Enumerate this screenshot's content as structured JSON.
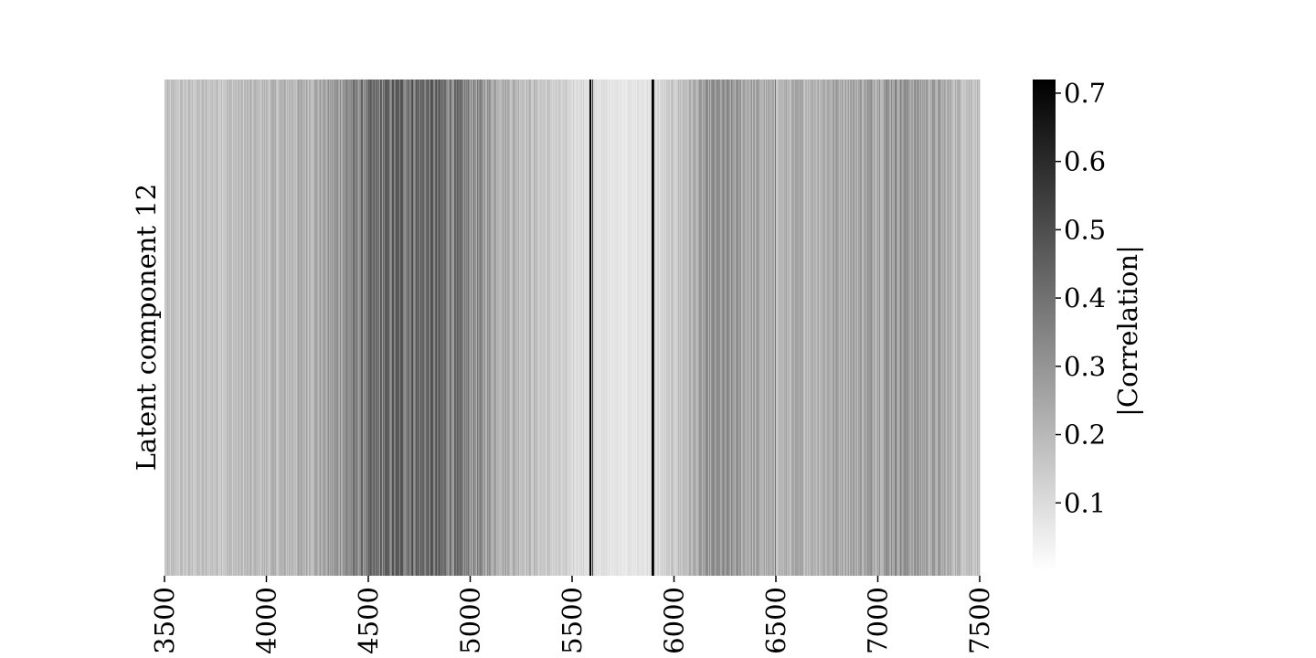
{
  "chart_data": {
    "type": "heatmap",
    "title": "",
    "xlabel": "",
    "ylabel": "Latent component 12",
    "xlim": [
      3500,
      7500
    ],
    "xticks": [
      3500,
      4000,
      4500,
      5000,
      5500,
      6000,
      6500,
      7000,
      7500
    ],
    "xtick_labels": [
      "3500",
      "4000",
      "4500",
      "5000",
      "5500",
      "6000",
      "6500",
      "7000",
      "7500"
    ],
    "rows": [
      "Latent component 12"
    ],
    "colorbar": {
      "label": "|Correlation|",
      "range": [
        0.0,
        0.72
      ],
      "ticks": [
        0.1,
        0.2,
        0.3,
        0.4,
        0.5,
        0.6,
        0.7
      ],
      "tick_labels": [
        "0.1",
        "0.2",
        "0.3",
        "0.4",
        "0.5",
        "0.6",
        "0.7"
      ],
      "colormap": "white-to-black"
    },
    "profile": {
      "x": [
        3500,
        3700,
        3850,
        4000,
        4150,
        4300,
        4400,
        4500,
        4600,
        4700,
        4800,
        4900,
        5000,
        5100,
        5200,
        5300,
        5400,
        5500,
        5600,
        5700,
        5800,
        5850,
        5900,
        6000,
        6100,
        6200,
        6300,
        6400,
        6500,
        6600,
        6700,
        6800,
        6900,
        7000,
        7100,
        7200,
        7300,
        7400,
        7500
      ],
      "value": [
        0.16,
        0.17,
        0.18,
        0.19,
        0.21,
        0.25,
        0.32,
        0.36,
        0.4,
        0.42,
        0.41,
        0.37,
        0.32,
        0.27,
        0.22,
        0.18,
        0.14,
        0.11,
        0.09,
        0.08,
        0.07,
        0.08,
        0.09,
        0.15,
        0.22,
        0.29,
        0.27,
        0.24,
        0.2,
        0.22,
        0.23,
        0.25,
        0.25,
        0.27,
        0.3,
        0.27,
        0.24,
        0.2,
        0.18
      ]
    },
    "peaks": [
      {
        "x": 5590,
        "value": 0.72
      },
      {
        "x": 5600,
        "value": 0.55
      },
      {
        "x": 5895,
        "value": 0.72
      },
      {
        "x": 5900,
        "value": 0.62
      },
      {
        "x": 6497,
        "value": 0.38
      }
    ]
  }
}
